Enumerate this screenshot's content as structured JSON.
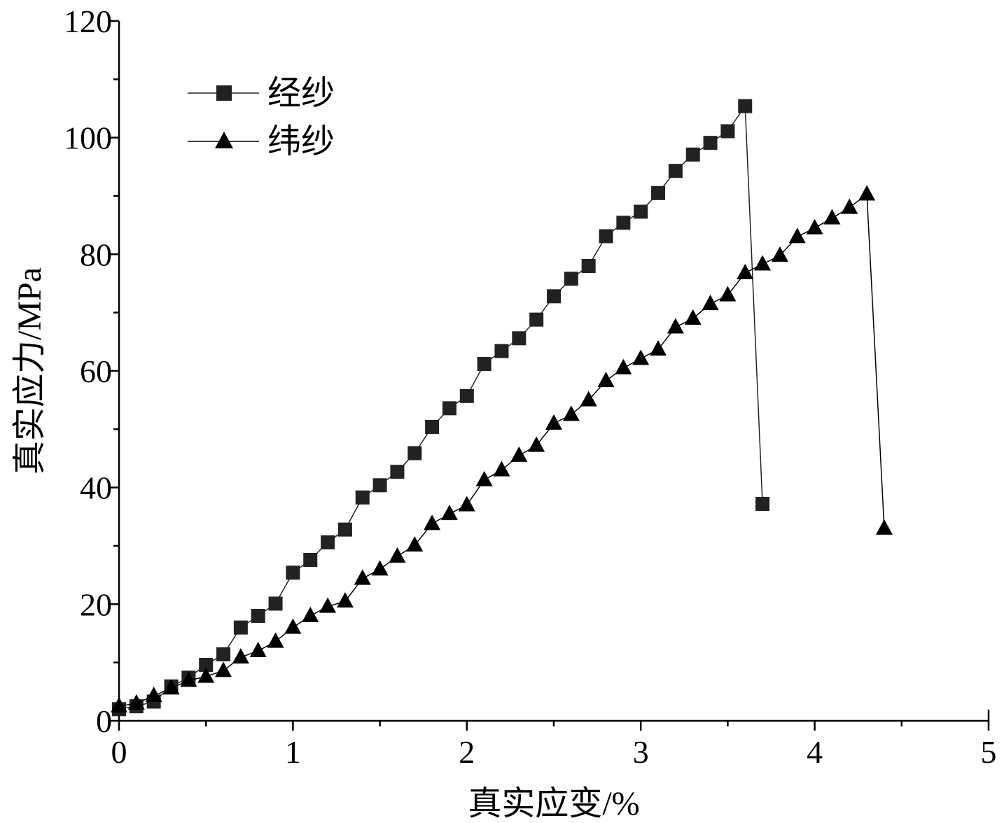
{
  "chart_data": {
    "type": "line",
    "title": "",
    "xlabel": "真实应变/%",
    "ylabel": "真实应力/MPa",
    "xlim": [
      0,
      5
    ],
    "ylim": [
      0,
      120
    ],
    "x_ticks": [
      0,
      1,
      2,
      3,
      4,
      5
    ],
    "x_tick_labels": [
      "0",
      "1",
      "2",
      "3",
      "4",
      "5"
    ],
    "y_ticks": [
      0,
      20,
      40,
      60,
      80,
      100,
      120
    ],
    "y_tick_labels": [
      "0",
      "20",
      "40",
      "60",
      "80",
      "100",
      "120"
    ],
    "grid": false,
    "legend": "top-left",
    "series": [
      {
        "name": "经纱",
        "marker": "square",
        "color": "#222222",
        "x": [
          0,
          0.1,
          0.2,
          0.3,
          0.4,
          0.5,
          0.6,
          0.7,
          0.8,
          0.9,
          1.0,
          1.1,
          1.2,
          1.3,
          1.4,
          1.5,
          1.6,
          1.7,
          1.8,
          1.9,
          2.0,
          2.1,
          2.2,
          2.3,
          2.4,
          2.5,
          2.6,
          2.7,
          2.8,
          2.9,
          3.0,
          3.1,
          3.2,
          3.3,
          3.4,
          3.5,
          3.6,
          3.7
        ],
        "y": [
          2.0,
          2.5,
          3.3,
          5.9,
          7.4,
          9.6,
          11.4,
          16.0,
          18.0,
          20.1,
          25.4,
          27.6,
          30.6,
          32.8,
          38.3,
          40.4,
          42.7,
          45.9,
          50.4,
          53.6,
          55.7,
          61.2,
          63.4,
          65.6,
          68.8,
          72.8,
          75.8,
          78.0,
          83.1,
          85.4,
          87.3,
          90.5,
          94.3,
          97.1,
          99.1,
          101.1,
          105.4,
          37.2
        ]
      },
      {
        "name": "纬纱",
        "marker": "triangle",
        "color": "#000000",
        "x": [
          0,
          0.1,
          0.2,
          0.3,
          0.4,
          0.5,
          0.6,
          0.7,
          0.8,
          0.9,
          1.0,
          1.1,
          1.2,
          1.3,
          1.4,
          1.5,
          1.6,
          1.7,
          1.8,
          1.9,
          2.0,
          2.1,
          2.2,
          2.3,
          2.4,
          2.5,
          2.6,
          2.7,
          2.8,
          2.9,
          3.0,
          3.1,
          3.2,
          3.3,
          3.4,
          3.5,
          3.6,
          3.7,
          3.8,
          3.9,
          4.0,
          4.1,
          4.2,
          4.3,
          4.4
        ],
        "y": [
          2.5,
          3.0,
          4.3,
          5.6,
          6.9,
          7.6,
          8.6,
          10.9,
          12.0,
          13.6,
          16.0,
          18.0,
          19.6,
          20.5,
          24.4,
          26.0,
          28.2,
          30.1,
          33.8,
          35.5,
          37.0,
          41.3,
          43.0,
          45.5,
          47.2,
          51.0,
          52.5,
          55.0,
          58.3,
          60.5,
          62.1,
          63.7,
          67.5,
          69.0,
          71.5,
          73.0,
          76.8,
          78.3,
          79.8,
          83.0,
          84.5,
          86.2,
          88.0,
          90.3,
          33.0
        ]
      }
    ]
  }
}
